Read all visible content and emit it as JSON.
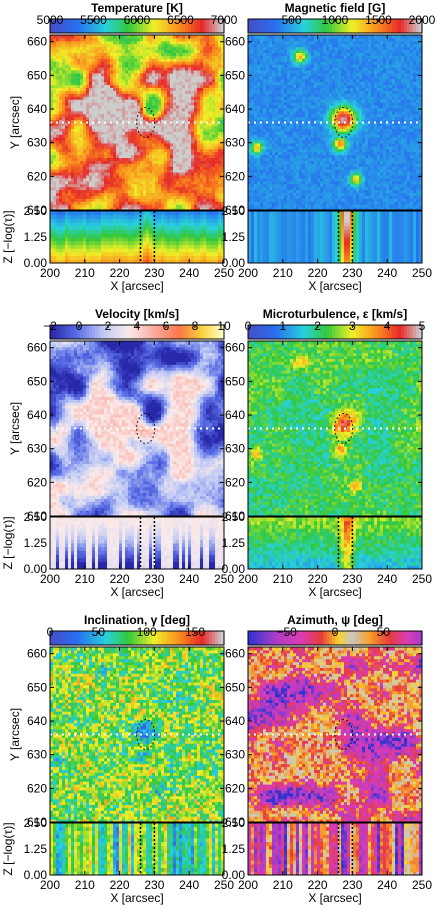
{
  "chart_data": [
    {
      "type": "heatmap",
      "title": "Temperature [K]",
      "colorbar": {
        "min": 5000,
        "max": 7000,
        "ticks": [
          5000,
          5500,
          6000,
          6500,
          7000
        ],
        "palette": "rainbow"
      },
      "xlabel": "X [arcsec]",
      "ylabel": "Y [arcsec]",
      "zlabel": "Z [−log(τ)]",
      "xlim": [
        200,
        250
      ],
      "ylim": [
        610,
        662
      ],
      "zlim": [
        0,
        2.5
      ],
      "xticks": [
        200,
        210,
        220,
        230,
        240,
        250
      ],
      "yticks": [
        610,
        620,
        630,
        640,
        650,
        660
      ],
      "zticks": [
        "0.00",
        "1.25",
        "2.50"
      ],
      "slice_y": 636,
      "pattern": "granulation",
      "low_color": "#4b6bd9",
      "mid_color": "#f0a030",
      "high_color": "#c8c8c8"
    },
    {
      "type": "heatmap",
      "title": "Magnetic field [G]",
      "colorbar": {
        "min": 0,
        "max": 2000,
        "ticks": [
          500,
          1000,
          1500,
          2000
        ],
        "palette": "rainbow"
      },
      "xlabel": "X [arcsec]",
      "ylabel": "",
      "zlabel": "",
      "xlim": [
        200,
        250
      ],
      "ylim": [
        610,
        662
      ],
      "zlim": [
        0,
        2.5
      ],
      "xticks": [
        200,
        210,
        220,
        230,
        240,
        250
      ],
      "yticks": [
        610,
        620,
        630,
        640,
        650,
        660
      ],
      "zticks": [
        "0.00",
        "1.25",
        "2.50"
      ],
      "slice_y": 636,
      "pattern": "field-concentration",
      "background_color": "#2e4fd0"
    },
    {
      "type": "heatmap",
      "title": "Velocity [km/s]",
      "colorbar": {
        "min": -2,
        "max": 10,
        "ticks": [
          -2,
          0,
          2,
          4,
          6,
          8,
          10
        ],
        "palette": "diverging"
      },
      "xlabel": "X [arcsec]",
      "ylabel": "Y [arcsec]",
      "zlabel": "Z [−log(τ)]",
      "xlim": [
        200,
        250
      ],
      "ylim": [
        610,
        662
      ],
      "zlim": [
        0,
        2.5
      ],
      "xticks": [
        200,
        210,
        220,
        230,
        240,
        250
      ],
      "yticks": [
        610,
        620,
        630,
        640,
        650,
        660
      ],
      "zticks": [
        "0.00",
        "1.25",
        "2.50"
      ],
      "slice_y": 636,
      "pattern": "downflow-lanes",
      "low_color": "#1a2aa0",
      "high_color": "#f4c8c8"
    },
    {
      "type": "heatmap",
      "title": "Microturbulence, ε [km/s]",
      "colorbar": {
        "min": 0,
        "max": 5,
        "ticks": [
          0,
          1,
          2,
          3,
          4,
          5
        ],
        "palette": "rainbow"
      },
      "xlabel": "X [arcsec]",
      "ylabel": "",
      "zlabel": "",
      "xlim": [
        200,
        250
      ],
      "ylim": [
        610,
        662
      ],
      "zlim": [
        0,
        2.5
      ],
      "xticks": [
        200,
        210,
        220,
        230,
        240,
        250
      ],
      "yticks": [
        610,
        620,
        630,
        640,
        650,
        660
      ],
      "zticks": [
        "0.00",
        "1.25",
        "2.50"
      ],
      "slice_y": 636,
      "pattern": "turbulence",
      "background_color": "#3f6fd0"
    },
    {
      "type": "heatmap",
      "title": "Inclination, γ [deg]",
      "colorbar": {
        "min": 0,
        "max": 180,
        "ticks": [
          0,
          50,
          100,
          150
        ],
        "palette": "rainbow"
      },
      "xlabel": "X [arcsec]",
      "ylabel": "Y [arcsec]",
      "zlabel": "Z [−log(τ)]",
      "xlim": [
        200,
        250
      ],
      "ylim": [
        610,
        662
      ],
      "zlim": [
        0,
        2.5
      ],
      "xticks": [
        200,
        210,
        220,
        230,
        240,
        250
      ],
      "yticks": [
        610,
        620,
        630,
        640,
        650,
        660
      ],
      "zticks": [
        "0.00",
        "1.25",
        "2.50"
      ],
      "slice_y": 636,
      "pattern": "inclination",
      "background_color": "#9ccc3a"
    },
    {
      "type": "heatmap",
      "title": "Azimuth, ψ [deg]",
      "colorbar": {
        "min": -90,
        "max": 90,
        "ticks": [
          -50,
          0,
          50
        ],
        "palette": "cyclic"
      },
      "xlabel": "X [arcsec]",
      "ylabel": "",
      "zlabel": "",
      "xlim": [
        200,
        250
      ],
      "ylim": [
        610,
        662
      ],
      "zlim": [
        0,
        2.5
      ],
      "xticks": [
        200,
        210,
        220,
        230,
        240,
        250
      ],
      "yticks": [
        610,
        620,
        630,
        640,
        650,
        660
      ],
      "zticks": [
        "0.00",
        "1.25",
        "2.50"
      ],
      "slice_y": 636,
      "pattern": "azimuth",
      "background_color": "#c040b0"
    }
  ]
}
